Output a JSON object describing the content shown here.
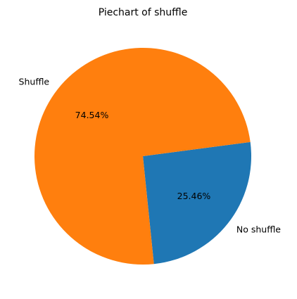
{
  "chart_data": {
    "type": "pie",
    "title": "Piechart of shuffle",
    "slices": [
      {
        "label": "No shuffle",
        "value": 25.46,
        "pct_label": "25.46%",
        "color": "#1f77b4"
      },
      {
        "label": "Shuffle",
        "value": 74.54,
        "pct_label": "74.54%",
        "color": "#ff7f0e"
      }
    ]
  }
}
